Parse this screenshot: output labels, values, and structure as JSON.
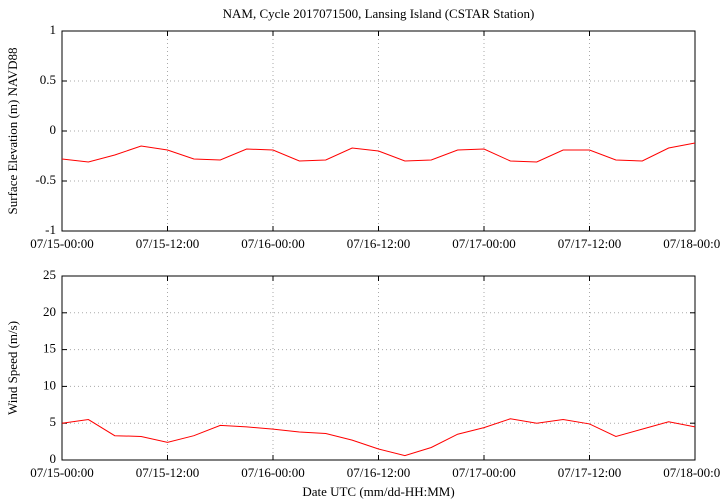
{
  "chart_data": [
    {
      "type": "line",
      "title": "NAM, Cycle 2017071500,  Lansing Island (CSTAR Station)",
      "y_label": "Surface Elevation (m) NAVD88",
      "x": [
        "07/15-00:00",
        "07/15-03:00",
        "07/15-06:00",
        "07/15-09:00",
        "07/15-12:00",
        "07/15-15:00",
        "07/15-18:00",
        "07/15-21:00",
        "07/16-00:00",
        "07/16-03:00",
        "07/16-06:00",
        "07/16-09:00",
        "07/16-12:00",
        "07/16-15:00",
        "07/16-18:00",
        "07/16-21:00",
        "07/17-00:00",
        "07/17-03:00",
        "07/17-06:00",
        "07/17-09:00",
        "07/17-12:00",
        "07/17-15:00",
        "07/17-18:00",
        "07/17-21:00",
        "07/18-00:00"
      ],
      "series": [
        {
          "color": "#ff0000",
          "values": [
            -0.28,
            -0.31,
            -0.24,
            -0.15,
            -0.19,
            -0.28,
            -0.29,
            -0.18,
            -0.19,
            -0.3,
            -0.29,
            -0.17,
            -0.2,
            -0.3,
            -0.29,
            -0.19,
            -0.18,
            -0.3,
            -0.31,
            -0.19,
            -0.19,
            -0.29,
            -0.3,
            -0.17,
            -0.12
          ]
        }
      ],
      "xticks": [
        "07/15-00:00",
        "07/15-12:00",
        "07/16-00:00",
        "07/16-12:00",
        "07/17-00:00",
        "07/17-12:00",
        "07/18-00:00"
      ],
      "ylim": [
        -1,
        1
      ],
      "yticks": [
        -1,
        -0.5,
        0,
        0.5,
        1
      ],
      "grid": true
    },
    {
      "type": "line",
      "x_label": "Date UTC (mm/dd-HH:MM)",
      "y_label": "Wind Speed (m/s)",
      "x": [
        "07/15-00:00",
        "07/15-03:00",
        "07/15-06:00",
        "07/15-09:00",
        "07/15-12:00",
        "07/15-15:00",
        "07/15-18:00",
        "07/15-21:00",
        "07/16-00:00",
        "07/16-03:00",
        "07/16-06:00",
        "07/16-09:00",
        "07/16-12:00",
        "07/16-15:00",
        "07/16-18:00",
        "07/16-21:00",
        "07/17-00:00",
        "07/17-03:00",
        "07/17-06:00",
        "07/17-09:00",
        "07/17-12:00",
        "07/17-15:00",
        "07/17-18:00",
        "07/17-21:00",
        "07/18-00:00"
      ],
      "series": [
        {
          "color": "#ff0000",
          "values": [
            5.0,
            5.5,
            3.3,
            3.2,
            2.4,
            3.3,
            4.7,
            4.5,
            4.2,
            3.8,
            3.6,
            2.7,
            1.5,
            0.6,
            1.7,
            3.5,
            4.4,
            5.6,
            5.0,
            5.5,
            4.9,
            3.2,
            4.2,
            5.2,
            4.5
          ]
        }
      ],
      "xticks": [
        "07/15-00:00",
        "07/15-12:00",
        "07/16-00:00",
        "07/16-12:00",
        "07/17-00:00",
        "07/17-12:00",
        "07/18-00:00"
      ],
      "ylim": [
        0,
        25
      ],
      "yticks": [
        0,
        5,
        10,
        15,
        20,
        25
      ],
      "grid": true
    }
  ]
}
